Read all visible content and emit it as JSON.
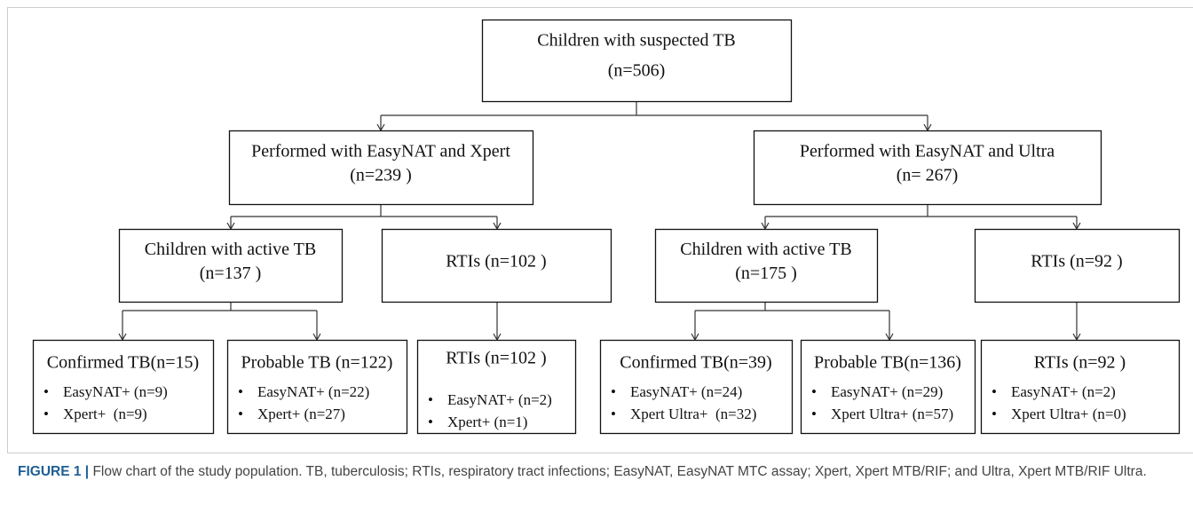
{
  "nodes": [
    {
      "lines": [
        "Children with suspected TB",
        "(n=506)"
      ]
    },
    {
      "lines": [
        "Performed with EasyNAT and Xpert",
        "(n=239 )"
      ]
    },
    {
      "lines": [
        "Performed with EasyNAT and Ultra",
        "(n= 267)"
      ]
    },
    {
      "lines": [
        "Children with active TB",
        "(n=137 )"
      ]
    },
    {
      "lines": [
        "RTIs (n=102 )"
      ]
    },
    {
      "lines": [
        "Children with active TB",
        "(n=175 )"
      ]
    },
    {
      "lines": [
        "RTIs (n=92 )"
      ]
    },
    {
      "lines": [
        "Confirmed TB(n=15)"
      ],
      "bullets": [
        "EasyNAT+ (n=9)",
        "Xpert+  (n=9)"
      ]
    },
    {
      "lines": [
        "Probable TB (n=122)"
      ],
      "bullets": [
        "EasyNAT+ (n=22)",
        "Xpert+ (n=27)"
      ]
    },
    {
      "lines": [
        "RTIs (n=102 )"
      ],
      "bullets": [
        "EasyNAT+ (n=2)",
        "Xpert+ (n=1)"
      ]
    },
    {
      "lines": [
        "Confirmed TB(n=39)"
      ],
      "bullets": [
        "EasyNAT+ (n=24)",
        "Xpert Ultra+  (n=32)"
      ]
    },
    {
      "lines": [
        "Probable TB(n=136)"
      ],
      "bullets": [
        "EasyNAT+ (n=29)",
        "Xpert Ultra+ (n=57)"
      ]
    },
    {
      "lines": [
        "RTIs (n=92 )"
      ],
      "bullets": [
        "EasyNAT+ (n=2)",
        "Xpert Ultra+ (n=0)"
      ]
    }
  ],
  "caption": {
    "label": "FIGURE 1 |",
    "text": "Flow chart of the study population. TB, tuberculosis; RTIs, respiratory tract infections; EasyNAT, EasyNAT MTC assay; Xpert, Xpert MTB/RIF; and Ultra, Xpert MTB/RIF Ultra."
  }
}
